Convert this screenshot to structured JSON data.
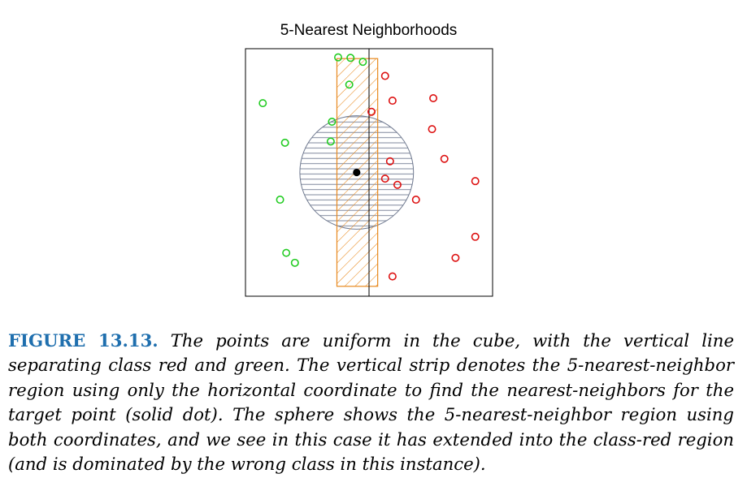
{
  "figure": {
    "title": "5-Nearest Neighborhoods",
    "caption_label": "FIGURE 13.13.",
    "caption_text": "The points are uniform in the cube, with the vertical line separating class red and green. The vertical strip denotes the 5-nearest-neighbor region using only the horizontal coordinate to find the nearest-neighbors for the target point (solid dot). The sphere shows the 5-nearest-neighbor region using both coordinates, and we see in this case it has extended into the class-red region (and is dominated by the wrong class in this instance)."
  },
  "chart_data": {
    "type": "scatter",
    "title": "5-Nearest Neighborhoods",
    "xlabel": "",
    "ylabel": "",
    "xlim": [
      0,
      1
    ],
    "ylim": [
      0,
      1
    ],
    "grid": false,
    "axis_ticks": false,
    "decision_boundary_x": 0.5,
    "target_point": {
      "x": 0.45,
      "y": 0.5
    },
    "sphere": {
      "cx": 0.45,
      "cy": 0.5,
      "radius": 0.23
    },
    "strip": {
      "x0": 0.37,
      "x1": 0.535,
      "y0": 0.04,
      "y1": 0.96
    },
    "colors": {
      "green": "#22cc22",
      "red": "#dd1111",
      "strip": "#e8891e",
      "sphere": "#707a90",
      "target": "#000000",
      "boundary": "#000000"
    },
    "series": [
      {
        "name": "",
        "color": "green",
        "points": [
          {
            "x": 0.375,
            "y": 0.965
          },
          {
            "x": 0.425,
            "y": 0.963
          },
          {
            "x": 0.475,
            "y": 0.947
          },
          {
            "x": 0.42,
            "y": 0.855
          },
          {
            "x": 0.07,
            "y": 0.78
          },
          {
            "x": 0.35,
            "y": 0.705
          },
          {
            "x": 0.345,
            "y": 0.625
          },
          {
            "x": 0.16,
            "y": 0.62
          },
          {
            "x": 0.14,
            "y": 0.39
          },
          {
            "x": 0.165,
            "y": 0.175
          },
          {
            "x": 0.2,
            "y": 0.135
          }
        ]
      },
      {
        "name": "",
        "color": "red",
        "points": [
          {
            "x": 0.565,
            "y": 0.89
          },
          {
            "x": 0.595,
            "y": 0.79
          },
          {
            "x": 0.76,
            "y": 0.8
          },
          {
            "x": 0.51,
            "y": 0.745
          },
          {
            "x": 0.755,
            "y": 0.675
          },
          {
            "x": 0.805,
            "y": 0.555
          },
          {
            "x": 0.585,
            "y": 0.545
          },
          {
            "x": 0.565,
            "y": 0.475
          },
          {
            "x": 0.615,
            "y": 0.45
          },
          {
            "x": 0.69,
            "y": 0.39
          },
          {
            "x": 0.93,
            "y": 0.465
          },
          {
            "x": 0.93,
            "y": 0.24
          },
          {
            "x": 0.85,
            "y": 0.155
          },
          {
            "x": 0.595,
            "y": 0.08
          }
        ]
      }
    ]
  }
}
